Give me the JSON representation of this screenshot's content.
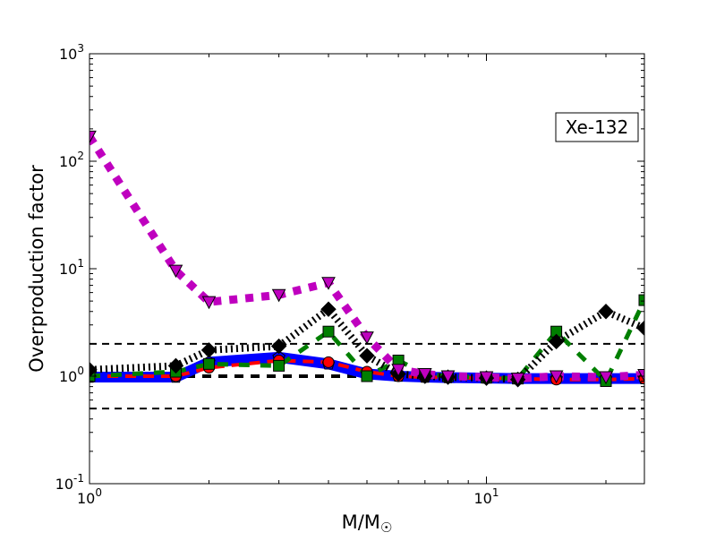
{
  "chart_data": {
    "type": "line",
    "title": "",
    "xlabel": "M/M",
    "xlabel_symbol": "☉",
    "ylabel": "Overproduction factor",
    "xscale": "log",
    "yscale": "log",
    "xlim": [
      1,
      25
    ],
    "ylim": [
      0.1,
      1000
    ],
    "x_ticks": [
      {
        "value": 1,
        "base": "10",
        "exp": "0"
      },
      {
        "value": 10,
        "base": "10",
        "exp": "1"
      }
    ],
    "y_ticks": [
      {
        "value": 0.1,
        "base": "10",
        "exp": "-1"
      },
      {
        "value": 1,
        "base": "10",
        "exp": "0"
      },
      {
        "value": 10,
        "base": "10",
        "exp": "1"
      },
      {
        "value": 100,
        "base": "10",
        "exp": "2"
      },
      {
        "value": 1000,
        "base": "10",
        "exp": "3"
      }
    ],
    "legend": {
      "text": "Xe-132",
      "placement": "top-right"
    },
    "reference_lines": [
      2,
      1,
      0.5
    ],
    "x": [
      1,
      1.65,
      2,
      3,
      4,
      5,
      6,
      7,
      8,
      10,
      12,
      15,
      20,
      25
    ],
    "series": [
      {
        "name": "blue-solid-pentagon",
        "color": "#0000ff",
        "marker": "pentagon",
        "values": [
          0.98,
          0.98,
          1.35,
          1.5,
          1.3,
          1.05,
          1.0,
          0.98,
          0.97,
          0.96,
          0.95,
          0.95,
          0.95,
          0.95
        ]
      },
      {
        "name": "red-dashed-circle",
        "color": "#ff0000",
        "marker": "circle",
        "values": [
          1.0,
          1.0,
          1.2,
          1.4,
          1.35,
          1.1,
          1.0,
          0.98,
          0.97,
          0.96,
          0.95,
          0.93,
          0.93,
          0.95
        ]
      },
      {
        "name": "green-dashed-square",
        "color": "#007f00",
        "marker": "square",
        "values": [
          1.0,
          1.1,
          1.3,
          1.25,
          2.6,
          1.0,
          1.4,
          1.05,
          1.0,
          0.97,
          0.95,
          2.6,
          0.9,
          5.1
        ]
      },
      {
        "name": "black-dotted-diamond",
        "color": "#000000",
        "marker": "diamond",
        "values": [
          1.15,
          1.25,
          1.75,
          1.9,
          4.2,
          1.55,
          1.05,
          1.0,
          0.98,
          0.96,
          0.93,
          2.1,
          4.0,
          2.8
        ]
      },
      {
        "name": "magenta-dotted-triangle",
        "color": "#bf00bf",
        "marker": "triangle-down",
        "values": [
          170,
          9.6,
          4.9,
          5.7,
          7.4,
          2.3,
          1.15,
          1.05,
          1.0,
          0.98,
          0.95,
          1.0,
          0.98,
          1.03
        ]
      }
    ]
  }
}
